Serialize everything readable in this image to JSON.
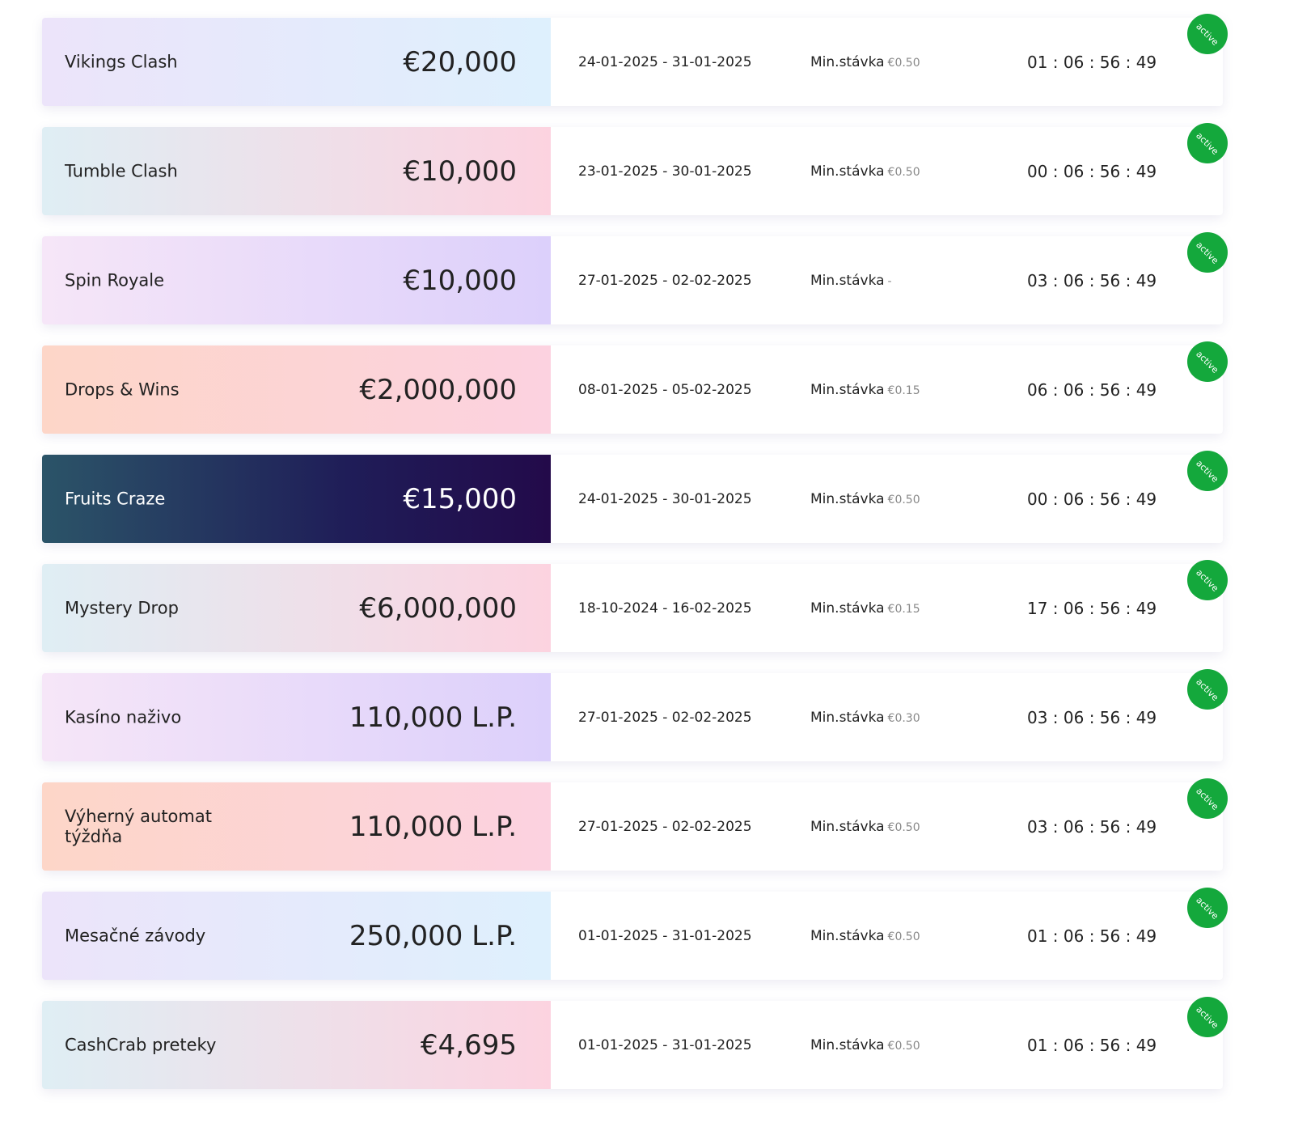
{
  "rows": [
    {
      "name": "Vikings Clash",
      "prize": "€20,000",
      "dates": "24-01-2025 - 31-01-2025",
      "min_label": "Min.stávka",
      "min_value": "€0.50",
      "countdown": "01 : 06 : 56 : 49",
      "status": "active"
    },
    {
      "name": "Tumble Clash",
      "prize": "€10,000",
      "dates": "23-01-2025 - 30-01-2025",
      "min_label": "Min.stávka",
      "min_value": "€0.50",
      "countdown": "00 : 06 : 56 : 49",
      "status": "active"
    },
    {
      "name": "Spin Royale",
      "prize": "€10,000",
      "dates": "27-01-2025 - 02-02-2025",
      "min_label": "Min.stávka",
      "min_value": "-",
      "countdown": "03 : 06 : 56 : 49",
      "status": "active"
    },
    {
      "name": "Drops & Wins",
      "prize": "€2,000,000",
      "dates": "08-01-2025 - 05-02-2025",
      "min_label": "Min.stávka",
      "min_value": "€0.15",
      "countdown": "06 : 06 : 56 : 49",
      "status": "active"
    },
    {
      "name": "Fruits Craze",
      "prize": "€15,000",
      "dates": "24-01-2025 - 30-01-2025",
      "min_label": "Min.stávka",
      "min_value": "€0.50",
      "countdown": "00 : 06 : 56 : 49",
      "status": "active"
    },
    {
      "name": "Mystery Drop",
      "prize": "€6,000,000",
      "dates": "18-10-2024 - 16-02-2025",
      "min_label": "Min.stávka",
      "min_value": "€0.15",
      "countdown": "17 : 06 : 56 : 49",
      "status": "active"
    },
    {
      "name": "Kasíno naživo",
      "prize": "110,000 L.P.",
      "dates": "27-01-2025 - 02-02-2025",
      "min_label": "Min.stávka",
      "min_value": "€0.30",
      "countdown": "03 : 06 : 56 : 49",
      "status": "active"
    },
    {
      "name": "Výherný automat týždňa",
      "prize": "110,000 L.P.",
      "dates": "27-01-2025 - 02-02-2025",
      "min_label": "Min.stávka",
      "min_value": "€0.50",
      "countdown": "03 : 06 : 56 : 49",
      "status": "active"
    },
    {
      "name": "Mesačné závody",
      "prize": "250,000 L.P.",
      "dates": "01-01-2025 - 31-01-2025",
      "min_label": "Min.stávka",
      "min_value": "€0.50",
      "countdown": "01 : 06 : 56 : 49",
      "status": "active"
    },
    {
      "name": "CashCrab preteky",
      "prize": "€4,695",
      "dates": "01-01-2025 - 31-01-2025",
      "min_label": "Min.stávka",
      "min_value": "€0.50",
      "countdown": "01 : 06 : 56 : 49",
      "status": "active"
    }
  ]
}
